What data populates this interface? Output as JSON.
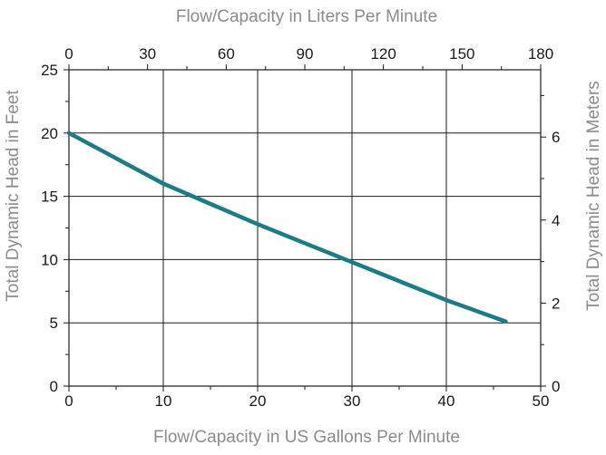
{
  "chart_data": {
    "type": "line",
    "title": "",
    "xlabel": "Flow/Capacity in US Gallons Per Minute",
    "ylabel": "Total Dynamic Head in Feet",
    "x2label": "Flow/Capacity in Liters Per Minute",
    "y2label": "Total Dynamic Head in Meters",
    "xlim": [
      0,
      50
    ],
    "ylim": [
      0,
      25
    ],
    "x2lim": [
      0,
      180
    ],
    "y2lim": [
      0,
      7.62
    ],
    "x_ticks": [
      0,
      10,
      20,
      30,
      40,
      50
    ],
    "y_ticks": [
      0,
      5,
      10,
      15,
      20,
      25
    ],
    "x2_ticks": [
      0,
      30,
      60,
      90,
      120,
      150,
      180
    ],
    "y2_ticks": [
      0,
      2,
      4,
      6
    ],
    "grid": true,
    "line_color": "#1a7d85",
    "series": [
      {
        "x": [
          0,
          5,
          10,
          15,
          20,
          25,
          30,
          35,
          40,
          46.3
        ],
        "y": [
          20,
          18,
          16,
          14.4,
          12.8,
          11.3,
          9.8,
          8.3,
          6.8,
          5.1
        ]
      }
    ]
  }
}
